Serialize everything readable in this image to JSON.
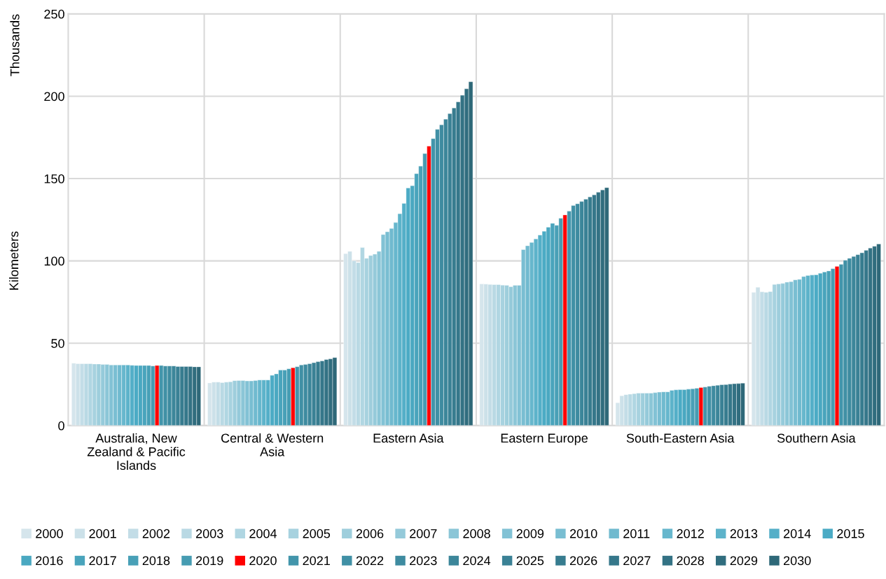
{
  "chart_data": {
    "type": "bar",
    "ylabel": "Kilometers",
    "annotations": [
      "Thousands"
    ],
    "categories": [
      "Australia, New\nZealand & Pacific\nIslands",
      "Central & Western\nAsia",
      "Eastern Asia",
      "Eastern Europe",
      "South-Eastern Asia",
      "Southern Asia"
    ],
    "ylim": [
      0,
      250
    ],
    "yticks": [
      0,
      50,
      100,
      150,
      200,
      250
    ],
    "grid": true,
    "legend": "bottom",
    "series": [
      {
        "name": "2000",
        "color": "#d5e5ec",
        "values": [
          37.9,
          25.9,
          104.4,
          86.0,
          13.9,
          80.9
        ]
      },
      {
        "name": "2001",
        "color": "#cce1e9",
        "values": [
          37.6,
          26.4,
          105.8,
          85.9,
          18.1,
          84.0
        ]
      },
      {
        "name": "2002",
        "color": "#c3dde7",
        "values": [
          37.6,
          26.4,
          100.1,
          85.7,
          18.8,
          81.2
        ]
      },
      {
        "name": "2003",
        "color": "#b9d9e4",
        "values": [
          37.6,
          26.1,
          99.0,
          85.6,
          19.1,
          80.9
        ]
      },
      {
        "name": "2004",
        "color": "#b0d6e2",
        "values": [
          37.6,
          26.4,
          108.1,
          85.6,
          19.4,
          81.4
        ]
      },
      {
        "name": "2005",
        "color": "#a7d2df",
        "values": [
          37.4,
          26.6,
          101.6,
          85.3,
          19.7,
          85.7
        ]
      },
      {
        "name": "2006",
        "color": "#9ecedc",
        "values": [
          37.4,
          27.3,
          103.3,
          85.2,
          19.7,
          86.0
        ]
      },
      {
        "name": "2007",
        "color": "#95cada",
        "values": [
          37.1,
          27.4,
          104.1,
          84.3,
          19.7,
          86.3
        ]
      },
      {
        "name": "2008",
        "color": "#8bc6d7",
        "values": [
          37.1,
          27.4,
          105.8,
          85.2,
          19.7,
          87.1
        ]
      },
      {
        "name": "2009",
        "color": "#82c2d5",
        "values": [
          36.8,
          27.1,
          116.0,
          85.2,
          20.0,
          87.4
        ]
      },
      {
        "name": "2010",
        "color": "#79bed2",
        "values": [
          36.8,
          27.1,
          117.7,
          106.9,
          20.3,
          88.5
        ]
      },
      {
        "name": "2011",
        "color": "#70bacf",
        "values": [
          36.8,
          27.4,
          119.7,
          109.2,
          20.5,
          88.8
        ]
      },
      {
        "name": "2012",
        "color": "#67b7cd",
        "values": [
          36.8,
          27.7,
          123.3,
          111.2,
          20.5,
          90.5
        ]
      },
      {
        "name": "2013",
        "color": "#5db3ca",
        "values": [
          36.8,
          27.7,
          128.7,
          113.4,
          21.4,
          91.1
        ]
      },
      {
        "name": "2014",
        "color": "#54afc8",
        "values": [
          36.6,
          27.7,
          134.9,
          115.7,
          21.7,
          91.4
        ]
      },
      {
        "name": "2015",
        "color": "#4babc5",
        "values": [
          36.5,
          30.5,
          144.3,
          118.0,
          21.8,
          91.6
        ]
      },
      {
        "name": "2016",
        "color": "#4aa8c1",
        "values": [
          36.5,
          31.4,
          145.7,
          120.5,
          21.8,
          92.5
        ]
      },
      {
        "name": "2017",
        "color": "#49a4bc",
        "values": [
          36.5,
          33.7,
          153.0,
          122.8,
          22.1,
          93.3
        ]
      },
      {
        "name": "2018",
        "color": "#48a0b7",
        "values": [
          36.5,
          33.7,
          157.6,
          121.6,
          22.4,
          93.9
        ]
      },
      {
        "name": "2019",
        "color": "#469cb2",
        "values": [
          36.2,
          34.5,
          165.2,
          125.9,
          22.7,
          95.3
        ]
      },
      {
        "name": "2020",
        "color": "#ff0000",
        "values": [
          36.5,
          35.1,
          169.7,
          127.9,
          23.1,
          96.7
        ]
      },
      {
        "name": "2021",
        "color": "#4295ab",
        "values": [
          36.5,
          35.8,
          174.3,
          130.2,
          23.4,
          97.9
        ]
      },
      {
        "name": "2022",
        "color": "#4090a5",
        "values": [
          36.2,
          36.8,
          179.9,
          133.6,
          23.9,
          100.4
        ]
      },
      {
        "name": "2023",
        "color": "#3e8ba0",
        "values": [
          36.2,
          37.1,
          182.7,
          134.7,
          24.2,
          101.6
        ]
      },
      {
        "name": "2024",
        "color": "#3c869a",
        "values": [
          36.2,
          37.6,
          186.1,
          136.1,
          24.5,
          102.7
        ]
      },
      {
        "name": "2025",
        "color": "#3a8195",
        "values": [
          35.9,
          38.2,
          189.5,
          137.5,
          24.8,
          103.8
        ]
      },
      {
        "name": "2026",
        "color": "#377c8f",
        "values": [
          35.9,
          38.8,
          192.9,
          138.9,
          24.9,
          104.9
        ]
      },
      {
        "name": "2027",
        "color": "#35778a",
        "values": [
          35.9,
          39.3,
          196.6,
          140.1,
          25.2,
          106.4
        ]
      },
      {
        "name": "2028",
        "color": "#337284",
        "values": [
          35.9,
          40.1,
          200.6,
          141.7,
          25.4,
          107.8
        ]
      },
      {
        "name": "2029",
        "color": "#306d7e",
        "values": [
          35.7,
          40.5,
          204.5,
          143.1,
          25.5,
          108.9
        ]
      },
      {
        "name": "2030",
        "color": "#2e6878",
        "values": [
          35.7,
          41.3,
          208.8,
          144.5,
          25.8,
          110.3
        ]
      }
    ]
  }
}
